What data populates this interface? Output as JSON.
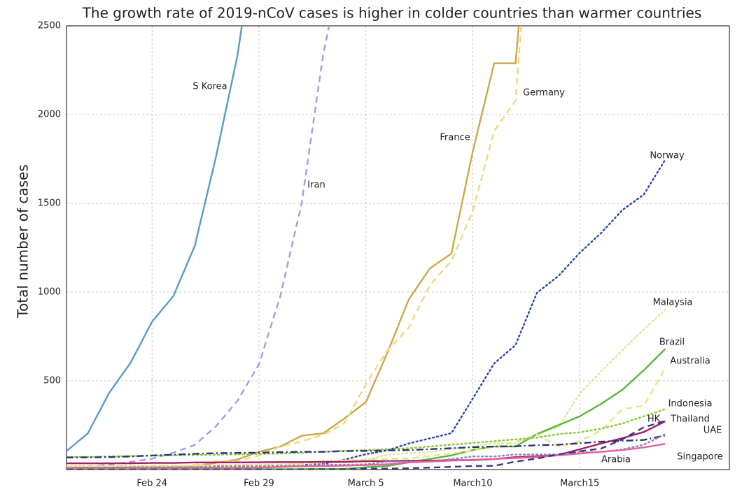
{
  "chart_data": {
    "type": "line",
    "title": "The growth rate of 2019-nCoV cases is higher in colder countries than warmer countries",
    "y_label": "Total number of cases",
    "x": [
      0,
      1,
      2,
      3,
      4,
      5,
      6,
      7,
      8,
      9,
      10,
      11,
      12,
      13,
      14,
      15,
      16,
      17,
      18,
      19,
      20,
      21,
      22,
      23,
      24,
      25,
      26,
      27,
      28
    ],
    "xlim": [
      0,
      31
    ],
    "xticks": [
      {
        "value": 4,
        "label": "Feb 24"
      },
      {
        "value": 9,
        "label": "Feb 29"
      },
      {
        "value": 14,
        "label": "March 5"
      },
      {
        "value": 19,
        "label": "March10"
      },
      {
        "value": 24,
        "label": "March15"
      }
    ],
    "ylim": [
      0,
      2500
    ],
    "yticks": [
      500,
      1000,
      1500,
      2000,
      2500
    ],
    "grid": true,
    "series": [
      {
        "name": "S Korea",
        "color": "#5a9bc4",
        "style": "solid",
        "values": [
          104,
          204,
          433,
          602,
          833,
          977,
          1261,
          1766,
          2337,
          3150,
          null,
          null,
          null,
          null,
          null,
          null,
          null,
          null,
          null,
          null,
          null,
          null,
          null,
          null,
          null,
          null,
          null,
          null,
          null
        ]
      },
      {
        "name": "Iran",
        "color": "#a59be8",
        "style": "dashed",
        "values": [
          5,
          18,
          28,
          43,
          61,
          95,
          139,
          245,
          388,
          593,
          978,
          1501,
          2336,
          2922,
          null,
          null,
          null,
          null,
          null,
          null,
          null,
          null,
          null,
          null,
          null,
          null,
          null,
          null,
          null
        ]
      },
      {
        "name": "France",
        "color": "#c9a94b",
        "style": "solid",
        "values": [
          12,
          12,
          12,
          12,
          12,
          14,
          18,
          38,
          57,
          100,
          130,
          191,
          204,
          288,
          380,
          656,
          957,
          1134,
          1217,
          1792,
          2289,
          2289,
          3672,
          null,
          null,
          null,
          null,
          null,
          null
        ]
      },
      {
        "name": "Germany",
        "color": "#ecd97a",
        "style": "dashed",
        "values": [
          16,
          16,
          16,
          16,
          16,
          16,
          27,
          46,
          48,
          79,
          130,
          159,
          196,
          262,
          482,
          670,
          799,
          1040,
          1176,
          1457,
          1908,
          2078,
          3675,
          null,
          null,
          null,
          null,
          null,
          null
        ]
      },
      {
        "name": "Norway",
        "color": "#2745b0",
        "style": "dotted",
        "values": [
          0,
          0,
          0,
          0,
          0,
          0,
          1,
          1,
          6,
          15,
          19,
          25,
          32,
          56,
          87,
          108,
          147,
          176,
          205,
          400,
          598,
          702,
          996,
          1090,
          1221,
          1333,
          1463,
          1550,
          1746
        ]
      },
      {
        "name": "Malaysia",
        "color": "#dfe69a",
        "style": "dotted",
        "values": [
          22,
          22,
          22,
          22,
          22,
          22,
          23,
          25,
          25,
          29,
          29,
          36,
          50,
          50,
          55,
          83,
          93,
          99,
          117,
          129,
          149,
          149,
          197,
          238,
          428,
          553,
          673,
          790,
          900
        ]
      },
      {
        "name": "Brazil",
        "color": "#5bb53b",
        "style": "solid",
        "values": [
          0,
          0,
          0,
          0,
          0,
          0,
          1,
          1,
          1,
          2,
          2,
          2,
          4,
          4,
          13,
          20,
          40,
          60,
          80,
          110,
          130,
          130,
          200,
          250,
          300,
          370,
          450,
          560,
          680
        ]
      },
      {
        "name": "Australia",
        "color": "#e4e97e",
        "style": "dashed",
        "values": [
          15,
          15,
          17,
          21,
          22,
          23,
          23,
          23,
          25,
          25,
          27,
          30,
          39,
          52,
          55,
          60,
          63,
          76,
          91,
          107,
          128,
          156,
          199,
          130,
          160,
          220,
          340,
          360,
          570
        ]
      },
      {
        "name": "Indonesia",
        "color": "#8cc63e",
        "style": "dotted",
        "values": [
          70,
          72,
          74,
          76,
          78,
          80,
          82,
          84,
          86,
          88,
          90,
          95,
          100,
          105,
          110,
          115,
          120,
          130,
          140,
          150,
          160,
          170,
          180,
          200,
          210,
          230,
          260,
          300,
          340
        ]
      },
      {
        "name": "Thailand",
        "color": "#a61c66",
        "style": "solid",
        "values": [
          35,
          35,
          35,
          35,
          37,
          37,
          40,
          40,
          40,
          41,
          42,
          42,
          43,
          43,
          47,
          48,
          50,
          50,
          53,
          53,
          59,
          70,
          75,
          82,
          114,
          147,
          177,
          212,
          272
        ]
      },
      {
        "name": "HK",
        "color": "#2d3270",
        "style": "dashdot",
        "values": [
          68,
          69,
          70,
          74,
          79,
          84,
          89,
          92,
          94,
          95,
          98,
          100,
          100,
          104,
          105,
          108,
          110,
          115,
          120,
          126,
          130,
          131,
          137,
          140,
          148,
          157,
          162,
          167,
          192
        ]
      },
      {
        "name": "UAE",
        "color": "#8a88c0",
        "style": "dotted",
        "values": [
          9,
          9,
          11,
          13,
          13,
          13,
          13,
          19,
          19,
          19,
          21,
          21,
          27,
          27,
          29,
          45,
          45,
          45,
          59,
          74,
          74,
          85,
          85,
          85,
          98,
          98,
          113,
          140,
          199
        ]
      },
      {
        "name": "Singapore",
        "color": "#e4609a",
        "style": "solid",
        "values": [
          10,
          10,
          10,
          10,
          10,
          10,
          10,
          10,
          10,
          10,
          15,
          18,
          20,
          22,
          25,
          30,
          40,
          45,
          50,
          55,
          60,
          65,
          70,
          80,
          90,
          100,
          110,
          125,
          145
        ]
      },
      {
        "name": "Arabia",
        "color": "#333a80",
        "style": "dashed",
        "values": [
          0,
          0,
          0,
          0,
          0,
          0,
          0,
          0,
          0,
          0,
          0,
          1,
          1,
          1,
          5,
          5,
          7,
          11,
          15,
          20,
          21,
          45,
          62,
          86,
          103,
          118,
          171,
          238,
          274
        ]
      }
    ]
  }
}
